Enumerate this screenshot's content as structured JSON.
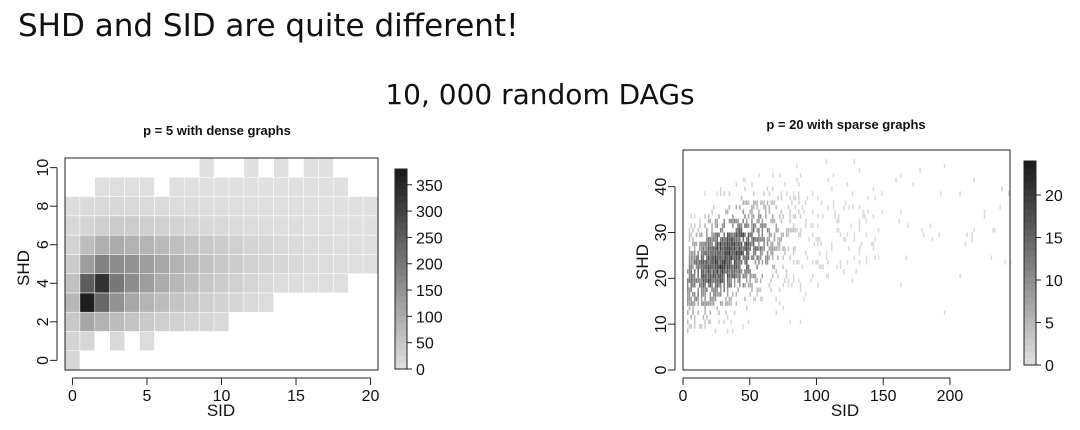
{
  "slide": {
    "title": "SHD and SID are quite different!",
    "subtitle": "10, 000 random DAGs"
  },
  "chart_data": [
    {
      "type": "heatmap",
      "title": "p = 5 with dense graphs",
      "xlabel": "SID",
      "ylabel": "SHD",
      "xlim": [
        -0.5,
        20.5
      ],
      "ylim": [
        -0.5,
        10.5
      ],
      "xticks": [
        0,
        5,
        10,
        15,
        20
      ],
      "yticks": [
        0,
        2,
        4,
        6,
        8,
        10
      ],
      "colorbar": {
        "min": 0,
        "max": 380,
        "ticks": [
          0,
          50,
          100,
          150,
          200,
          250,
          300,
          350
        ]
      },
      "grid": false,
      "colorbar_position": "right",
      "peak": {
        "x": 1,
        "y": 3,
        "value": 370
      },
      "cells": [
        [
          0,
          0,
          20
        ],
        [
          0,
          1,
          25
        ],
        [
          1,
          1,
          20
        ],
        [
          3,
          1,
          15
        ],
        [
          5,
          1,
          10
        ],
        [
          0,
          2,
          45
        ],
        [
          1,
          2,
          110
        ],
        [
          2,
          2,
          90
        ],
        [
          3,
          2,
          70
        ],
        [
          4,
          2,
          55
        ],
        [
          5,
          2,
          45
        ],
        [
          6,
          2,
          35
        ],
        [
          7,
          2,
          30
        ],
        [
          8,
          2,
          25
        ],
        [
          9,
          2,
          20
        ],
        [
          10,
          2,
          15
        ],
        [
          0,
          3,
          80
        ],
        [
          1,
          3,
          370
        ],
        [
          2,
          3,
          230
        ],
        [
          3,
          3,
          150
        ],
        [
          4,
          3,
          110
        ],
        [
          5,
          3,
          85
        ],
        [
          6,
          3,
          70
        ],
        [
          7,
          3,
          55
        ],
        [
          8,
          3,
          45
        ],
        [
          9,
          3,
          35
        ],
        [
          10,
          3,
          28
        ],
        [
          11,
          3,
          20
        ],
        [
          12,
          3,
          15
        ],
        [
          13,
          3,
          10
        ],
        [
          0,
          4,
          60
        ],
        [
          1,
          4,
          250
        ],
        [
          2,
          4,
          330
        ],
        [
          3,
          4,
          200
        ],
        [
          4,
          4,
          160
        ],
        [
          5,
          4,
          130
        ],
        [
          6,
          4,
          100
        ],
        [
          7,
          4,
          80
        ],
        [
          8,
          4,
          65
        ],
        [
          9,
          4,
          50
        ],
        [
          10,
          4,
          40
        ],
        [
          11,
          4,
          30
        ],
        [
          12,
          4,
          22
        ],
        [
          13,
          4,
          15
        ],
        [
          14,
          4,
          10
        ],
        [
          15,
          4,
          8
        ],
        [
          16,
          4,
          6
        ],
        [
          17,
          4,
          5
        ],
        [
          18,
          4,
          4
        ],
        [
          0,
          5,
          40
        ],
        [
          1,
          5,
          130
        ],
        [
          2,
          5,
          180
        ],
        [
          3,
          5,
          160
        ],
        [
          4,
          5,
          150
        ],
        [
          5,
          5,
          130
        ],
        [
          6,
          5,
          110
        ],
        [
          7,
          5,
          90
        ],
        [
          8,
          5,
          75
        ],
        [
          9,
          5,
          60
        ],
        [
          10,
          5,
          50
        ],
        [
          11,
          5,
          40
        ],
        [
          12,
          5,
          30
        ],
        [
          13,
          5,
          25
        ],
        [
          14,
          5,
          20
        ],
        [
          15,
          5,
          15
        ],
        [
          16,
          5,
          12
        ],
        [
          17,
          5,
          10
        ],
        [
          18,
          5,
          8
        ],
        [
          19,
          5,
          6
        ],
        [
          20,
          5,
          5
        ],
        [
          0,
          6,
          25
        ],
        [
          1,
          6,
          70
        ],
        [
          2,
          6,
          95
        ],
        [
          3,
          6,
          100
        ],
        [
          4,
          6,
          90
        ],
        [
          5,
          6,
          85
        ],
        [
          6,
          6,
          75
        ],
        [
          7,
          6,
          65
        ],
        [
          8,
          6,
          55
        ],
        [
          9,
          6,
          45
        ],
        [
          10,
          6,
          40
        ],
        [
          11,
          6,
          32
        ],
        [
          12,
          6,
          25
        ],
        [
          13,
          6,
          20
        ],
        [
          14,
          6,
          15
        ],
        [
          15,
          6,
          12
        ],
        [
          16,
          6,
          10
        ],
        [
          17,
          6,
          8
        ],
        [
          18,
          6,
          6
        ],
        [
          19,
          6,
          5
        ],
        [
          20,
          6,
          4
        ],
        [
          0,
          7,
          15
        ],
        [
          1,
          7,
          25
        ],
        [
          2,
          7,
          35
        ],
        [
          3,
          7,
          40
        ],
        [
          4,
          7,
          38
        ],
        [
          5,
          7,
          35
        ],
        [
          6,
          7,
          30
        ],
        [
          7,
          7,
          26
        ],
        [
          8,
          7,
          22
        ],
        [
          9,
          7,
          18
        ],
        [
          10,
          7,
          15
        ],
        [
          11,
          7,
          12
        ],
        [
          12,
          7,
          10
        ],
        [
          13,
          7,
          8
        ],
        [
          14,
          7,
          6
        ],
        [
          15,
          7,
          5
        ],
        [
          16,
          7,
          4
        ],
        [
          17,
          7,
          3
        ],
        [
          18,
          7,
          2
        ],
        [
          19,
          7,
          2
        ],
        [
          20,
          7,
          2
        ],
        [
          0,
          8,
          8
        ],
        [
          1,
          8,
          12
        ],
        [
          2,
          8,
          15
        ],
        [
          3,
          8,
          18
        ],
        [
          4,
          8,
          16
        ],
        [
          5,
          8,
          14
        ],
        [
          6,
          8,
          12
        ],
        [
          7,
          8,
          10
        ],
        [
          8,
          8,
          9
        ],
        [
          9,
          8,
          8
        ],
        [
          10,
          8,
          7
        ],
        [
          11,
          8,
          6
        ],
        [
          12,
          8,
          5
        ],
        [
          13,
          8,
          4
        ],
        [
          14,
          8,
          4
        ],
        [
          15,
          8,
          3
        ],
        [
          16,
          8,
          3
        ],
        [
          17,
          8,
          2
        ],
        [
          18,
          8,
          2
        ],
        [
          19,
          8,
          2
        ],
        [
          20,
          8,
          1
        ],
        [
          2,
          9,
          4
        ],
        [
          3,
          9,
          5
        ],
        [
          4,
          9,
          4
        ],
        [
          5,
          9,
          3
        ],
        [
          7,
          9,
          3
        ],
        [
          8,
          9,
          3
        ],
        [
          9,
          9,
          2
        ],
        [
          10,
          9,
          2
        ],
        [
          11,
          9,
          2
        ],
        [
          12,
          9,
          2
        ],
        [
          13,
          9,
          2
        ],
        [
          14,
          9,
          1
        ],
        [
          15,
          9,
          1
        ],
        [
          16,
          9,
          1
        ],
        [
          17,
          9,
          1
        ],
        [
          18,
          9,
          1
        ],
        [
          9,
          10,
          1
        ],
        [
          12,
          10,
          1
        ],
        [
          14,
          10,
          1
        ],
        [
          16,
          10,
          1
        ],
        [
          17,
          10,
          1
        ]
      ]
    },
    {
      "type": "heatmap",
      "title": "p = 20 with sparse graphs",
      "xlabel": "SID",
      "ylabel": "SHD",
      "xlim": [
        0,
        245
      ],
      "ylim": [
        0,
        48
      ],
      "xticks": [
        0,
        50,
        100,
        150,
        200
      ],
      "yticks": [
        0,
        10,
        20,
        30,
        40
      ],
      "colorbar": {
        "min": 0,
        "max": 24,
        "ticks": [
          0,
          5,
          10,
          15,
          20
        ]
      },
      "grid": false,
      "colorbar_position": "right",
      "density": {
        "center_sid": 32,
        "center_shd": 26,
        "peak": 23,
        "trend": "SHD rises with SID, scattered up to SID 245"
      }
    }
  ]
}
